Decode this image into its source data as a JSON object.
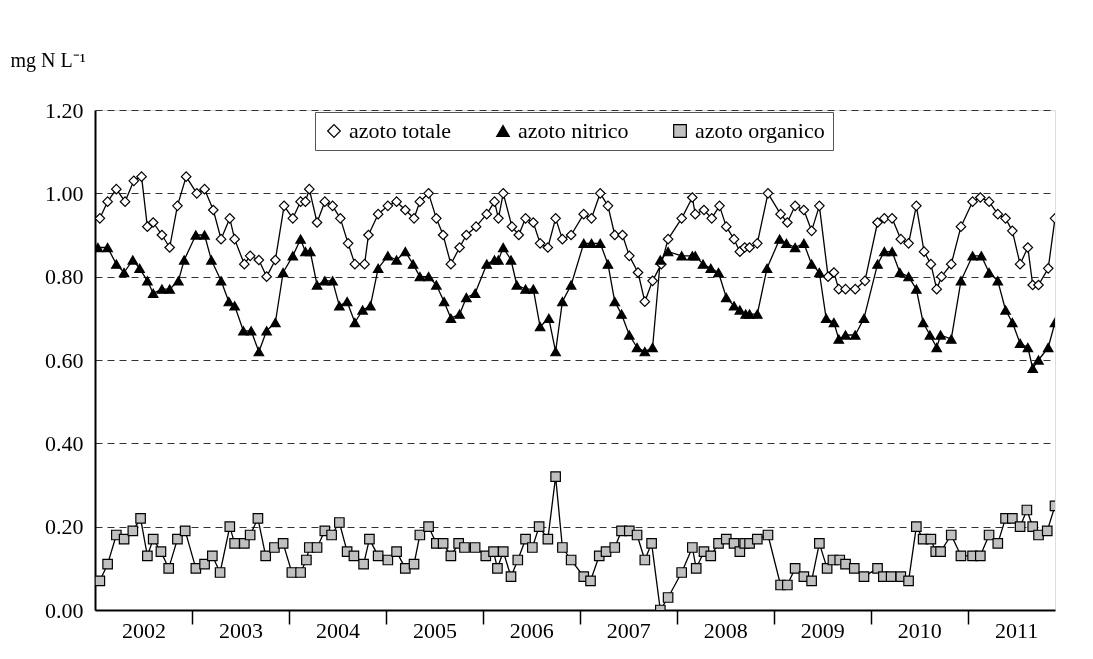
{
  "chart_data": {
    "type": "line",
    "ylabel": "mg N L⁻¹",
    "xlim": [
      2002,
      2011.9
    ],
    "xticks": [
      {
        "value": 2002.5,
        "label": "2002"
      },
      {
        "value": 2003,
        "label": null
      },
      {
        "value": 2003.5,
        "label": "2003"
      },
      {
        "value": 2004,
        "label": null
      },
      {
        "value": 2004.5,
        "label": "2004"
      },
      {
        "value": 2005,
        "label": null
      },
      {
        "value": 2005.5,
        "label": "2005"
      },
      {
        "value": 2006,
        "label": null
      },
      {
        "value": 2006.5,
        "label": "2006"
      },
      {
        "value": 2007,
        "label": null
      },
      {
        "value": 2007.5,
        "label": "2007"
      },
      {
        "value": 2008,
        "label": null
      },
      {
        "value": 2008.5,
        "label": "2008"
      },
      {
        "value": 2009,
        "label": null
      },
      {
        "value": 2009.5,
        "label": "2009"
      },
      {
        "value": 2010,
        "label": null
      },
      {
        "value": 2010.5,
        "label": "2010"
      },
      {
        "value": 2011,
        "label": null
      },
      {
        "value": 2011.5,
        "label": "2011"
      }
    ],
    "ylim": [
      0,
      1.2
    ],
    "yticks": [
      {
        "value": 0,
        "label": "0.00"
      },
      {
        "value": 0.2,
        "label": "0.20"
      },
      {
        "value": 0.4,
        "label": "0.40"
      },
      {
        "value": 0.6,
        "label": "0.60"
      },
      {
        "value": 0.8,
        "label": "0.80"
      },
      {
        "value": 1.0,
        "label": "1.00"
      },
      {
        "value": 1.2,
        "label": "1.20"
      }
    ],
    "grid": "y",
    "legend": "top",
    "line_style": "solid",
    "series": [
      {
        "name": "azoto totale",
        "color": "#ffffff",
        "marker": "diamond",
        "x": [
          2002.05,
          2002.13,
          2002.22,
          2002.31,
          2002.4,
          2002.48,
          2002.54,
          2002.6,
          2002.69,
          2002.77,
          2002.85,
          2002.94,
          2003.05,
          2003.13,
          2003.22,
          2003.3,
          2003.39,
          2003.44,
          2003.54,
          2003.6,
          2003.69,
          2003.77,
          2003.86,
          2003.95,
          2004.04,
          2004.12,
          2004.17,
          2004.21,
          2004.29,
          2004.37,
          2004.45,
          2004.53,
          2004.61,
          2004.68,
          2004.78,
          2004.82,
          2004.92,
          2005.02,
          2005.11,
          2005.2,
          2005.29,
          2005.35,
          2005.44,
          2005.52,
          2005.59,
          2005.67,
          2005.76,
          2005.83,
          2005.93,
          2006.04,
          2006.12,
          2006.16,
          2006.21,
          2006.3,
          2006.37,
          2006.44,
          2006.52,
          2006.59,
          2006.67,
          2006.75,
          2006.82,
          2006.91,
          2007.04,
          2007.12,
          2007.21,
          2007.29,
          2007.36,
          2007.44,
          2007.51,
          2007.6,
          2007.67,
          2007.75,
          2007.84,
          2007.91,
          2008.05,
          2008.16,
          2008.19,
          2008.28,
          2008.36,
          2008.44,
          2008.51,
          2008.59,
          2008.65,
          2008.7,
          2008.75,
          2008.83,
          2008.94,
          2009.07,
          2009.14,
          2009.22,
          2009.31,
          2009.39,
          2009.47,
          2009.56,
          2009.62,
          2009.67,
          2009.74,
          2009.84,
          2009.94,
          2010.07,
          2010.14,
          2010.22,
          2010.31,
          2010.39,
          2010.47,
          2010.55,
          2010.62,
          2010.68,
          2010.73,
          2010.83,
          2010.93,
          2011.05,
          2011.13,
          2011.22,
          2011.31,
          2011.39,
          2011.46,
          2011.54,
          2011.62,
          2011.67,
          2011.73,
          2011.83,
          2011.9
        ],
        "values": [
          0.94,
          0.98,
          1.01,
          0.98,
          1.03,
          1.04,
          0.92,
          0.93,
          0.9,
          0.87,
          0.97,
          1.04,
          1.0,
          1.01,
          0.96,
          0.89,
          0.94,
          0.89,
          0.83,
          0.85,
          0.84,
          0.8,
          0.84,
          0.97,
          0.94,
          0.98,
          0.98,
          1.01,
          0.93,
          0.98,
          0.97,
          0.94,
          0.88,
          0.83,
          0.83,
          0.9,
          0.95,
          0.97,
          0.98,
          0.96,
          0.94,
          0.98,
          1.0,
          0.94,
          0.9,
          0.83,
          0.87,
          0.9,
          0.92,
          0.95,
          0.98,
          0.94,
          1.0,
          0.92,
          0.9,
          0.94,
          0.93,
          0.88,
          0.87,
          0.94,
          0.89,
          0.9,
          0.95,
          0.94,
          1.0,
          0.97,
          0.9,
          0.9,
          0.85,
          0.81,
          0.74,
          0.79,
          0.83,
          0.89,
          0.94,
          0.99,
          0.95,
          0.96,
          0.94,
          0.97,
          0.92,
          0.89,
          0.86,
          0.87,
          0.87,
          0.88,
          1.0,
          0.95,
          0.93,
          0.97,
          0.96,
          0.91,
          0.97,
          0.8,
          0.81,
          0.77,
          0.77,
          0.77,
          0.79,
          0.93,
          0.94,
          0.94,
          0.89,
          0.88,
          0.97,
          0.86,
          0.83,
          0.77,
          0.8,
          0.83,
          0.92,
          0.98,
          0.99,
          0.98,
          0.95,
          0.94,
          0.91,
          0.83,
          0.87,
          0.78,
          0.78,
          0.82,
          0.94
        ]
      },
      {
        "name": "azoto nitrico",
        "color": "#000000",
        "marker": "triangle",
        "x": [
          2002.03,
          2002.13,
          2002.22,
          2002.3,
          2002.39,
          2002.46,
          2002.54,
          2002.6,
          2002.69,
          2002.77,
          2002.86,
          2002.92,
          2003.04,
          2003.13,
          2003.2,
          2003.3,
          2003.38,
          2003.44,
          2003.53,
          2003.61,
          2003.69,
          2003.77,
          2003.86,
          2003.94,
          2004.04,
          2004.12,
          2004.17,
          2004.22,
          2004.29,
          2004.37,
          2004.45,
          2004.52,
          2004.6,
          2004.68,
          2004.76,
          2004.84,
          2004.92,
          2005.02,
          2005.11,
          2005.2,
          2005.28,
          2005.35,
          2005.44,
          2005.52,
          2005.6,
          2005.67,
          2005.76,
          2005.83,
          2005.92,
          2006.04,
          2006.12,
          2006.16,
          2006.21,
          2006.29,
          2006.35,
          2006.44,
          2006.52,
          2006.59,
          2006.68,
          2006.75,
          2006.82,
          2006.91,
          2007.04,
          2007.12,
          2007.21,
          2007.29,
          2007.36,
          2007.43,
          2007.51,
          2007.59,
          2007.67,
          2007.75,
          2007.83,
          2007.91,
          2008.05,
          2008.16,
          2008.19,
          2008.27,
          2008.35,
          2008.43,
          2008.51,
          2008.59,
          2008.65,
          2008.71,
          2008.75,
          2008.83,
          2008.93,
          2009.06,
          2009.13,
          2009.22,
          2009.31,
          2009.39,
          2009.47,
          2009.54,
          2009.62,
          2009.67,
          2009.74,
          2009.84,
          2009.93,
          2010.07,
          2010.14,
          2010.22,
          2010.3,
          2010.39,
          2010.47,
          2010.54,
          2010.61,
          2010.68,
          2010.72,
          2010.83,
          2010.93,
          2011.05,
          2011.14,
          2011.22,
          2011.31,
          2011.39,
          2011.46,
          2011.54,
          2011.62,
          2011.67,
          2011.73,
          2011.83,
          2011.9
        ],
        "values": [
          0.87,
          0.87,
          0.83,
          0.81,
          0.84,
          0.82,
          0.79,
          0.76,
          0.77,
          0.77,
          0.79,
          0.84,
          0.9,
          0.9,
          0.84,
          0.79,
          0.74,
          0.73,
          0.67,
          0.67,
          0.62,
          0.67,
          0.69,
          0.81,
          0.85,
          0.89,
          0.86,
          0.86,
          0.78,
          0.79,
          0.79,
          0.73,
          0.74,
          0.69,
          0.72,
          0.73,
          0.82,
          0.85,
          0.84,
          0.86,
          0.83,
          0.8,
          0.8,
          0.78,
          0.74,
          0.7,
          0.71,
          0.75,
          0.76,
          0.83,
          0.84,
          0.84,
          0.87,
          0.84,
          0.78,
          0.77,
          0.77,
          0.68,
          0.7,
          0.62,
          0.74,
          0.78,
          0.88,
          0.88,
          0.88,
          0.83,
          0.74,
          0.71,
          0.66,
          0.63,
          0.62,
          0.63,
          0.84,
          0.86,
          0.85,
          0.85,
          0.85,
          0.83,
          0.82,
          0.81,
          0.75,
          0.73,
          0.72,
          0.71,
          0.71,
          0.71,
          0.82,
          0.89,
          0.88,
          0.87,
          0.88,
          0.83,
          0.81,
          0.7,
          0.69,
          0.65,
          0.66,
          0.66,
          0.7,
          0.83,
          0.86,
          0.86,
          0.81,
          0.8,
          0.77,
          0.69,
          0.66,
          0.63,
          0.66,
          0.65,
          0.79,
          0.85,
          0.85,
          0.81,
          0.79,
          0.72,
          0.69,
          0.64,
          0.63,
          0.58,
          0.6,
          0.63,
          0.69
        ]
      },
      {
        "name": "azoto organico",
        "color": "#c0c0c0",
        "marker": "square",
        "x": [
          2002.05,
          2002.13,
          2002.22,
          2002.3,
          2002.39,
          2002.47,
          2002.54,
          2002.6,
          2002.68,
          2002.76,
          2002.85,
          2002.93,
          2003.04,
          2003.13,
          2003.21,
          2003.29,
          2003.39,
          2003.44,
          2003.54,
          2003.6,
          2003.68,
          2003.76,
          2003.85,
          2003.94,
          2004.03,
          2004.12,
          2004.18,
          2004.21,
          2004.29,
          2004.37,
          2004.44,
          2004.52,
          2004.6,
          2004.67,
          2004.77,
          2004.83,
          2004.92,
          2005.02,
          2005.11,
          2005.2,
          2005.29,
          2005.35,
          2005.44,
          2005.52,
          2005.59,
          2005.67,
          2005.75,
          2005.81,
          2005.92,
          2006.03,
          2006.11,
          2006.15,
          2006.21,
          2006.29,
          2006.36,
          2006.44,
          2006.51,
          2006.58,
          2006.67,
          2006.75,
          2006.82,
          2006.91,
          2007.04,
          2007.11,
          2007.2,
          2007.27,
          2007.36,
          2007.43,
          2007.51,
          2007.59,
          2007.67,
          2007.74,
          2007.83,
          2007.91,
          2008.05,
          2008.16,
          2008.2,
          2008.28,
          2008.35,
          2008.43,
          2008.51,
          2008.59,
          2008.65,
          2008.7,
          2008.75,
          2008.83,
          2008.94,
          2009.07,
          2009.14,
          2009.22,
          2009.31,
          2009.39,
          2009.47,
          2009.55,
          2009.61,
          2009.68,
          2009.74,
          2009.83,
          2009.93,
          2010.07,
          2010.13,
          2010.21,
          2010.31,
          2010.39,
          2010.47,
          2010.54,
          2010.62,
          2010.67,
          2010.72,
          2010.83,
          2010.93,
          2011.05,
          2011.13,
          2011.22,
          2011.31,
          2011.39,
          2011.46,
          2011.54,
          2011.61,
          2011.67,
          2011.73,
          2011.82,
          2011.9
        ],
        "values": [
          0.07,
          0.11,
          0.18,
          0.17,
          0.19,
          0.22,
          0.13,
          0.17,
          0.14,
          0.1,
          0.17,
          0.19,
          0.1,
          0.11,
          0.13,
          0.09,
          0.2,
          0.16,
          0.16,
          0.18,
          0.22,
          0.13,
          0.15,
          0.16,
          0.09,
          0.09,
          0.12,
          0.15,
          0.15,
          0.19,
          0.18,
          0.21,
          0.14,
          0.13,
          0.11,
          0.17,
          0.13,
          0.12,
          0.14,
          0.1,
          0.11,
          0.18,
          0.2,
          0.16,
          0.16,
          0.13,
          0.16,
          0.15,
          0.15,
          0.13,
          0.14,
          0.1,
          0.14,
          0.08,
          0.12,
          0.17,
          0.15,
          0.2,
          0.17,
          0.32,
          0.15,
          0.12,
          0.08,
          0.07,
          0.13,
          0.14,
          0.15,
          0.19,
          0.19,
          0.18,
          0.12,
          0.16,
          0.0,
          0.03,
          0.09,
          0.15,
          0.1,
          0.14,
          0.13,
          0.16,
          0.17,
          0.16,
          0.14,
          0.16,
          0.16,
          0.17,
          0.18,
          0.06,
          0.06,
          0.1,
          0.08,
          0.07,
          0.16,
          0.1,
          0.12,
          0.12,
          0.11,
          0.1,
          0.08,
          0.1,
          0.08,
          0.08,
          0.08,
          0.07,
          0.2,
          0.17,
          0.17,
          0.14,
          0.14,
          0.18,
          0.13,
          0.13,
          0.13,
          0.18,
          0.16,
          0.22,
          0.22,
          0.2,
          0.24,
          0.2,
          0.18,
          0.19,
          0.25
        ]
      }
    ]
  }
}
